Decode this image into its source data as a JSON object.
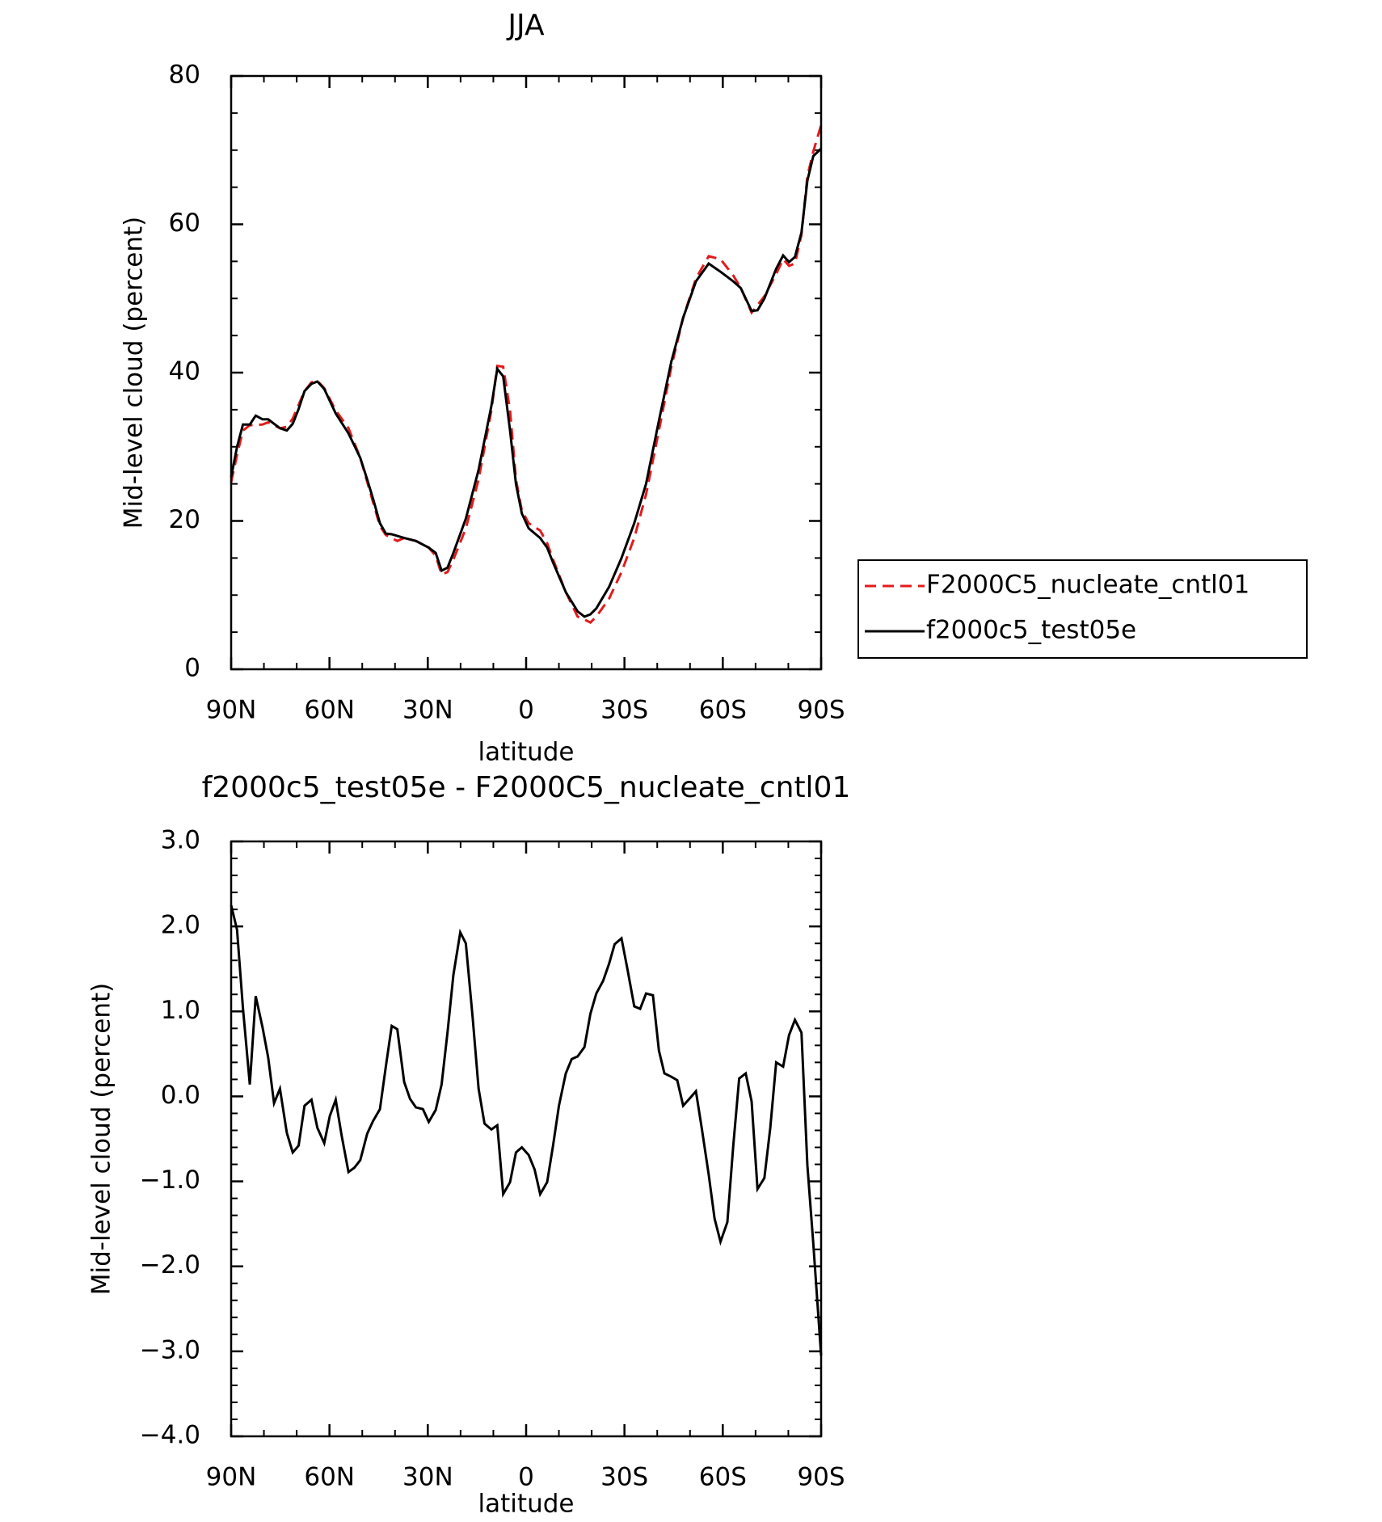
{
  "chart_data": [
    {
      "type": "line",
      "title": "JJA",
      "xlabel": "latitude",
      "ylabel": "Mid-level cloud (percent)",
      "xlim": [
        90,
        -90
      ],
      "xticks": [
        {
          "value": 90,
          "label": "90N"
        },
        {
          "value": 60,
          "label": "60N"
        },
        {
          "value": 30,
          "label": "30N"
        },
        0,
        {
          "value": -30,
          "label": "30S"
        },
        {
          "value": -60,
          "label": "60S"
        },
        {
          "value": -90,
          "label": "90S"
        }
      ],
      "ylim": [
        0,
        80
      ],
      "yticks": [
        0,
        20,
        40,
        60,
        80
      ],
      "legend": "right",
      "series": [
        {
          "name": "F2000C5_nucleate_cntl01",
          "color": "#e41a1c",
          "dashed": true,
          "x": [
            90,
            88.2,
            86.4,
            84.3,
            80.4,
            78.7,
            75.1,
            73,
            71.2,
            67.6,
            65.5,
            63.7,
            61.6,
            58.1,
            54.2,
            50.6,
            48.5,
            44.6,
            42.8,
            39.3,
            37.2,
            33.6,
            29.7,
            27.6,
            25.8,
            24,
            22.2,
            18.4,
            14.5,
            10.6,
            8.8,
            7,
            4.9,
            3.1,
            1.3,
            -0.8,
            -4.3,
            -6.4,
            -8.2,
            -12.1,
            -15.7,
            -17.8,
            -19.6,
            -21.4,
            -25.3,
            -29.1,
            -33,
            -36.6,
            -40.5,
            -44.3,
            -47.9,
            -51.8,
            -55.7,
            -59.3,
            -63.2,
            -65.5,
            -68.8,
            -70.6,
            -72.7,
            -76.3,
            -78.4,
            -80.2,
            -82,
            -84,
            -85.8,
            -87.6,
            -90
          ],
          "values": [
            25.2,
            28.9,
            32.2,
            32.9,
            33,
            33.3,
            32.5,
            32.7,
            33.8,
            37.5,
            38.7,
            38.9,
            37.9,
            34.9,
            32.5,
            28.5,
            25.3,
            19.3,
            18.1,
            17.3,
            17.7,
            17.3,
            16.4,
            15.3,
            12.8,
            13.1,
            14.8,
            19,
            25.6,
            34.9,
            40.9,
            40.8,
            34.9,
            25.6,
            21.4,
            19.7,
            18.7,
            17,
            14.8,
            10.4,
            7.1,
            6.7,
            6.3,
            7.1,
            9.5,
            13.1,
            17.7,
            23.6,
            32.2,
            40.8,
            47.4,
            52.7,
            55.7,
            55.3,
            53.1,
            51.4,
            48.1,
            49.1,
            50.3,
            53.3,
            55.3,
            54.4,
            54.7,
            58.6,
            66.5,
            69.8,
            73.4
          ]
        },
        {
          "name": "f2000c5_test05e",
          "color": "#000000",
          "dashed": false,
          "x": [
            90,
            88.2,
            86.4,
            84.3,
            82.5,
            80.4,
            78.7,
            75.1,
            73,
            71.2,
            69.4,
            67.6,
            65.5,
            63.7,
            61.6,
            58.1,
            54.2,
            50.6,
            48.5,
            46.7,
            44.6,
            42.8,
            41,
            37.2,
            33.6,
            29.7,
            27.6,
            25.8,
            24,
            22.2,
            18.4,
            14.5,
            10.6,
            8.8,
            7,
            4.9,
            3.1,
            1.3,
            -0.8,
            -4.3,
            -6.4,
            -8.2,
            -12.1,
            -15.7,
            -17.8,
            -19.6,
            -21.4,
            -25.3,
            -29.1,
            -33,
            -36.6,
            -40.5,
            -44.3,
            -47.9,
            -51.8,
            -55.7,
            -59.3,
            -63.2,
            -65.5,
            -68.8,
            -70.6,
            -72.7,
            -76.3,
            -78.4,
            -80.2,
            -82,
            -84,
            -85.8,
            -87.6,
            -90
          ],
          "values": [
            25.9,
            30,
            33,
            33,
            34.2,
            33.7,
            33.7,
            32.5,
            32.2,
            33.1,
            35.1,
            37.5,
            38.5,
            38.8,
            37.8,
            34.5,
            31.8,
            28.5,
            25.6,
            23,
            19.7,
            18.3,
            18.2,
            17.7,
            17.3,
            16.4,
            15.7,
            13.3,
            13.7,
            15.7,
            20.3,
            26.9,
            35.5,
            40.5,
            39.5,
            32.2,
            25,
            21,
            19,
            17.7,
            16.4,
            14.4,
            10.4,
            7.8,
            7.1,
            7.4,
            8.2,
            11.1,
            15,
            19.7,
            25,
            33.5,
            41.5,
            47.4,
            52.3,
            54.7,
            53.6,
            52.3,
            51.4,
            48.3,
            48.4,
            50,
            54,
            55.8,
            54.9,
            55.6,
            58.9,
            65.9,
            69.2,
            70.2
          ]
        }
      ]
    },
    {
      "type": "line",
      "title": "f2000c5_test05e - F2000C5_nucleate_cntl01",
      "xlabel": "latitude",
      "ylabel": "Mid-level cloud (percent)",
      "xlim": [
        90,
        -90
      ],
      "xticks": [
        {
          "value": 90,
          "label": "90N"
        },
        {
          "value": 60,
          "label": "60N"
        },
        {
          "value": 30,
          "label": "30N"
        },
        0,
        {
          "value": -30,
          "label": "30S"
        },
        {
          "value": -60,
          "label": "60S"
        },
        {
          "value": -90,
          "label": "90S"
        }
      ],
      "ylim": [
        -4,
        3
      ],
      "yticks": [
        {
          "value": -4,
          "label": "−4.0"
        },
        {
          "value": -3,
          "label": "−3.0"
        },
        {
          "value": -2,
          "label": "−2.0"
        },
        {
          "value": -1,
          "label": "−1.0"
        },
        {
          "value": 0,
          "label": "0.0"
        },
        {
          "value": 1,
          "label": "1.0"
        },
        {
          "value": 2,
          "label": "2.0"
        },
        {
          "value": 3,
          "label": "3.0"
        }
      ],
      "color": "#000000",
      "x": [
        90,
        88.2,
        86.4,
        84.3,
        82.5,
        80.4,
        78.7,
        76.9,
        75.1,
        73,
        71.2,
        69.4,
        67.6,
        65.5,
        63.7,
        61.6,
        59.9,
        58.1,
        56.3,
        54.2,
        52.4,
        50.6,
        48.5,
        46.7,
        44.6,
        42.8,
        41,
        39.3,
        37.2,
        35.4,
        33.6,
        31.5,
        29.7,
        27.6,
        25.8,
        24,
        22.2,
        20.1,
        18.4,
        16.3,
        14.5,
        12.7,
        10.6,
        8.8,
        7,
        4.9,
        3.1,
        1.3,
        -0.8,
        -2.6,
        -4.3,
        -6.4,
        -8.2,
        -10,
        -12.1,
        -13.9,
        -15.7,
        -17.8,
        -19.6,
        -21.4,
        -23.5,
        -25.3,
        -27,
        -29.1,
        -30.9,
        -33,
        -34.8,
        -36.6,
        -38.7,
        -40.5,
        -42.2,
        -44.3,
        -46.1,
        -47.9,
        -50,
        -51.8,
        -53.6,
        -55.7,
        -57.5,
        -59.3,
        -61.4,
        -63.2,
        -65,
        -67,
        -68.8,
        -70.6,
        -72.7,
        -74.5,
        -76.3,
        -78.4,
        -80.2,
        -82,
        -84,
        -85.8,
        -87.6,
        -90
      ],
      "values": [
        2.25,
        1.96,
        1.04,
        0.14,
        1.18,
        0.81,
        0.46,
        -0.08,
        0.09,
        -0.43,
        -0.66,
        -0.58,
        -0.11,
        -0.04,
        -0.37,
        -0.55,
        -0.23,
        -0.04,
        -0.46,
        -0.89,
        -0.84,
        -0.75,
        -0.44,
        -0.29,
        -0.15,
        0.35,
        0.83,
        0.79,
        0.17,
        -0.03,
        -0.13,
        -0.15,
        -0.3,
        -0.16,
        0.14,
        0.75,
        1.43,
        1.93,
        1.8,
        0.92,
        0.09,
        -0.32,
        -0.39,
        -0.34,
        -1.15,
        -1.01,
        -0.66,
        -0.6,
        -0.69,
        -0.86,
        -1.15,
        -1.01,
        -0.58,
        -0.11,
        0.27,
        0.44,
        0.47,
        0.58,
        0.97,
        1.21,
        1.36,
        1.56,
        1.79,
        1.86,
        1.5,
        1.06,
        1.03,
        1.21,
        1.19,
        0.54,
        0.27,
        0.23,
        0.19,
        -0.11,
        -0.02,
        0.06,
        -0.38,
        -0.92,
        -1.44,
        -1.71,
        -1.48,
        -0.58,
        0.21,
        0.27,
        -0.06,
        -1.09,
        -0.96,
        -0.37,
        0.4,
        0.35,
        0.72,
        0.9,
        0.75,
        -0.81,
        -1.73,
        -3.05
      ]
    }
  ]
}
